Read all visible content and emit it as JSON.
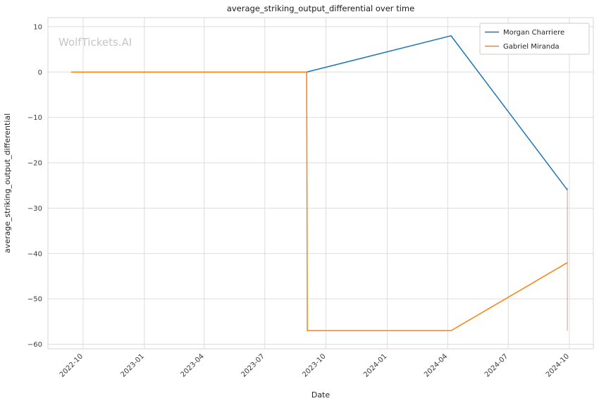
{
  "watermark": "WolfTickets.AI",
  "chart_data": {
    "type": "line",
    "title": "average_striking_output_differential over time",
    "xlabel": "Date",
    "ylabel": "average_striking_output_differential",
    "grid": true,
    "legend_position": "upper right",
    "xlim": [
      "2022-08-09",
      "2024-11-06"
    ],
    "ylim": [
      -61,
      12
    ],
    "x_ticks": [
      "2022-10",
      "2023-01",
      "2023-04",
      "2023-07",
      "2023-10",
      "2024-01",
      "2024-04",
      "2024-07",
      "2024-10"
    ],
    "y_ticks": [
      10,
      0,
      -10,
      -20,
      -30,
      -40,
      -50,
      -60
    ],
    "y_tick_labels": [
      "10",
      "0",
      "−10",
      "−20",
      "−30",
      "−40",
      "−50",
      "−60"
    ],
    "series": [
      {
        "name": "Morgan Charriere",
        "color": "#1f77b4",
        "points": [
          [
            "2022-09-13",
            0
          ],
          [
            "2023-09-02",
            0
          ],
          [
            "2024-04-06",
            8
          ],
          [
            "2024-09-28",
            -26
          ]
        ]
      },
      {
        "name": "Gabriel Miranda",
        "color": "#ff7f0e",
        "points": [
          [
            "2022-09-13",
            0
          ],
          [
            "2023-09-02",
            0
          ],
          [
            "2023-09-03",
            -57
          ],
          [
            "2024-04-06",
            -57
          ],
          [
            "2024-09-28",
            -42
          ]
        ]
      }
    ],
    "annotations": [
      {
        "type": "vline_segment",
        "x": "2024-09-28",
        "y1": -25.5,
        "y2": -57,
        "color": "#f2a19b",
        "opacity": 0.85
      }
    ]
  }
}
